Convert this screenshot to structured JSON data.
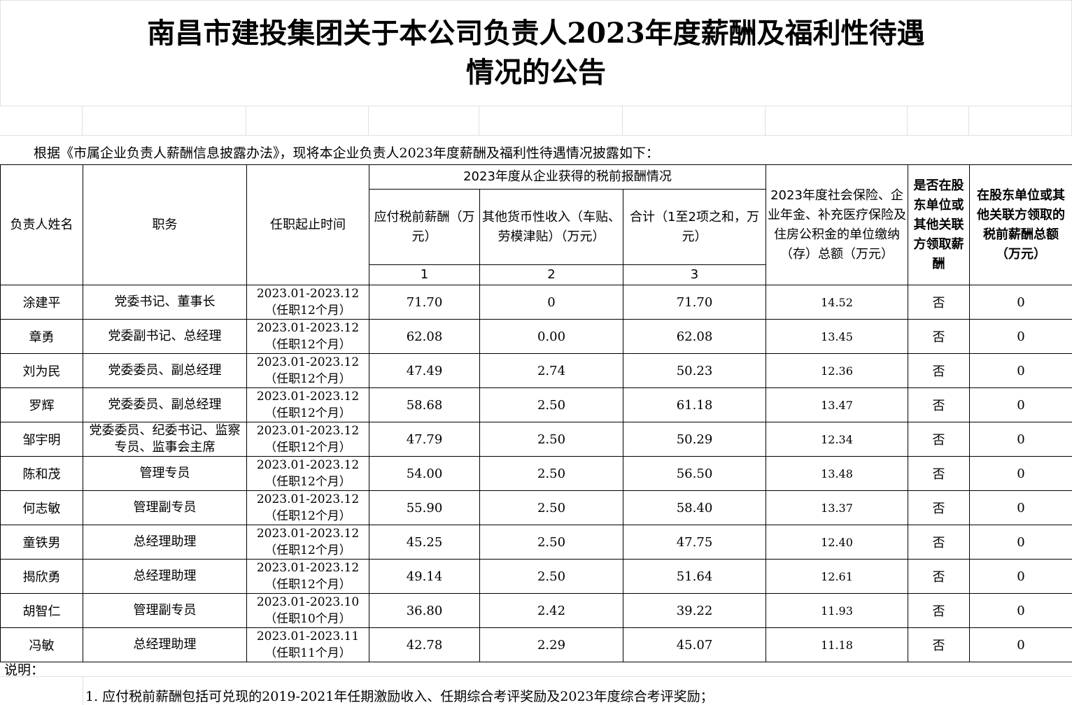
{
  "title": {
    "line1": "南昌市建投集团关于本公司负责人2023年度薪酬及福利性待遇",
    "line2": "情况的公告"
  },
  "intro": "根据《市属企业负责人薪酬信息披露办法》，现将本企业负责人2023年度薪酬及福利性待遇情况披露如下：",
  "headers": {
    "name": "负责人姓名",
    "position": "职务",
    "period": "任职起止时间",
    "group": "2023年度从企业获得的税前报酬情况",
    "salary": "应付税前薪酬（万元）",
    "other": "其他货币性收入（车贴、劳模津贴）（万元）",
    "total": "合计（1至2项之和，万元）",
    "col1": "1",
    "col2": "2",
    "col3": "3",
    "insurance": "2023年度社会保险、企业年金、补充医疗保险及住房公积金的单位缴纳（存）总额（万元）",
    "related": "是否在股东单位或其他关联方领取薪酬",
    "related_amount": "在股东单位或其他关联方领取的税前薪酬总额（万元）"
  },
  "rows": [
    {
      "name": "涂建平",
      "position": "党委书记、董事长",
      "period": "2023.01-2023.12",
      "months": "（任职12个月）",
      "salary": "71.70",
      "other": "0",
      "total": "71.70",
      "insurance": "14.52",
      "related": "否",
      "related_amount": "0"
    },
    {
      "name": "章勇",
      "position": "党委副书记、总经理",
      "period": "2023.01-2023.12",
      "months": "（任职12个月）",
      "salary": "62.08",
      "other": "0.00",
      "total": "62.08",
      "insurance": "13.45",
      "related": "否",
      "related_amount": "0"
    },
    {
      "name": "刘为民",
      "position": "党委委员、副总经理",
      "period": "2023.01-2023.12",
      "months": "（任职12个月）",
      "salary": "47.49",
      "other": "2.74",
      "total": "50.23",
      "insurance": "12.36",
      "related": "否",
      "related_amount": "0"
    },
    {
      "name": "罗辉",
      "position": "党委委员、副总经理",
      "period": "2023.01-2023.12",
      "months": "（任职12个月）",
      "salary": "58.68",
      "other": "2.50",
      "total": "61.18",
      "insurance": "13.47",
      "related": "否",
      "related_amount": "0"
    },
    {
      "name": "邹宇明",
      "position": "党委委员、纪委书记、监察专员、监事会主席",
      "period": "2023.01-2023.12",
      "months": "（任职12个月）",
      "salary": "47.79",
      "other": "2.50",
      "total": "50.29",
      "insurance": "12.34",
      "related": "否",
      "related_amount": "0"
    },
    {
      "name": "陈和茂",
      "position": "管理专员",
      "period": "2023.01-2023.12",
      "months": "（任职12个月）",
      "salary": "54.00",
      "other": "2.50",
      "total": "56.50",
      "insurance": "13.48",
      "related": "否",
      "related_amount": "0"
    },
    {
      "name": "何志敏",
      "position": "管理副专员",
      "period": "2023.01-2023.12",
      "months": "（任职12个月）",
      "salary": "55.90",
      "other": "2.50",
      "total": "58.40",
      "insurance": "13.37",
      "related": "否",
      "related_amount": "0"
    },
    {
      "name": "童铁男",
      "position": "总经理助理",
      "period": "2023.01-2023.12",
      "months": "（任职12个月）",
      "salary": "45.25",
      "other": "2.50",
      "total": "47.75",
      "insurance": "12.40",
      "related": "否",
      "related_amount": "0"
    },
    {
      "name": "揭欣勇",
      "position": "总经理助理",
      "period": "2023.01-2023.12",
      "months": "（任职12个月）",
      "salary": "49.14",
      "other": "2.50",
      "total": "51.64",
      "insurance": "12.61",
      "related": "否",
      "related_amount": "0"
    },
    {
      "name": "胡智仁",
      "position": "管理副专员",
      "period": "2023.01-2023.10",
      "months": "（任职10个月）",
      "salary": "36.80",
      "other": "2.42",
      "total": "39.22",
      "insurance": "11.93",
      "related": "否",
      "related_amount": "0"
    },
    {
      "name": "冯敏",
      "position": "总经理助理",
      "period": "2023.01-2023.11",
      "months": "（任职11个月）",
      "salary": "42.78",
      "other": "2.29",
      "total": "45.07",
      "insurance": "11.18",
      "related": "否",
      "related_amount": "0"
    }
  ],
  "notes": {
    "label": "说明：",
    "items": [
      "1. 应付税前薪酬包括可兑现的2019-2021年任期激励收入、任期综合考评奖励及2023年度综合考评奖励；"
    ]
  }
}
